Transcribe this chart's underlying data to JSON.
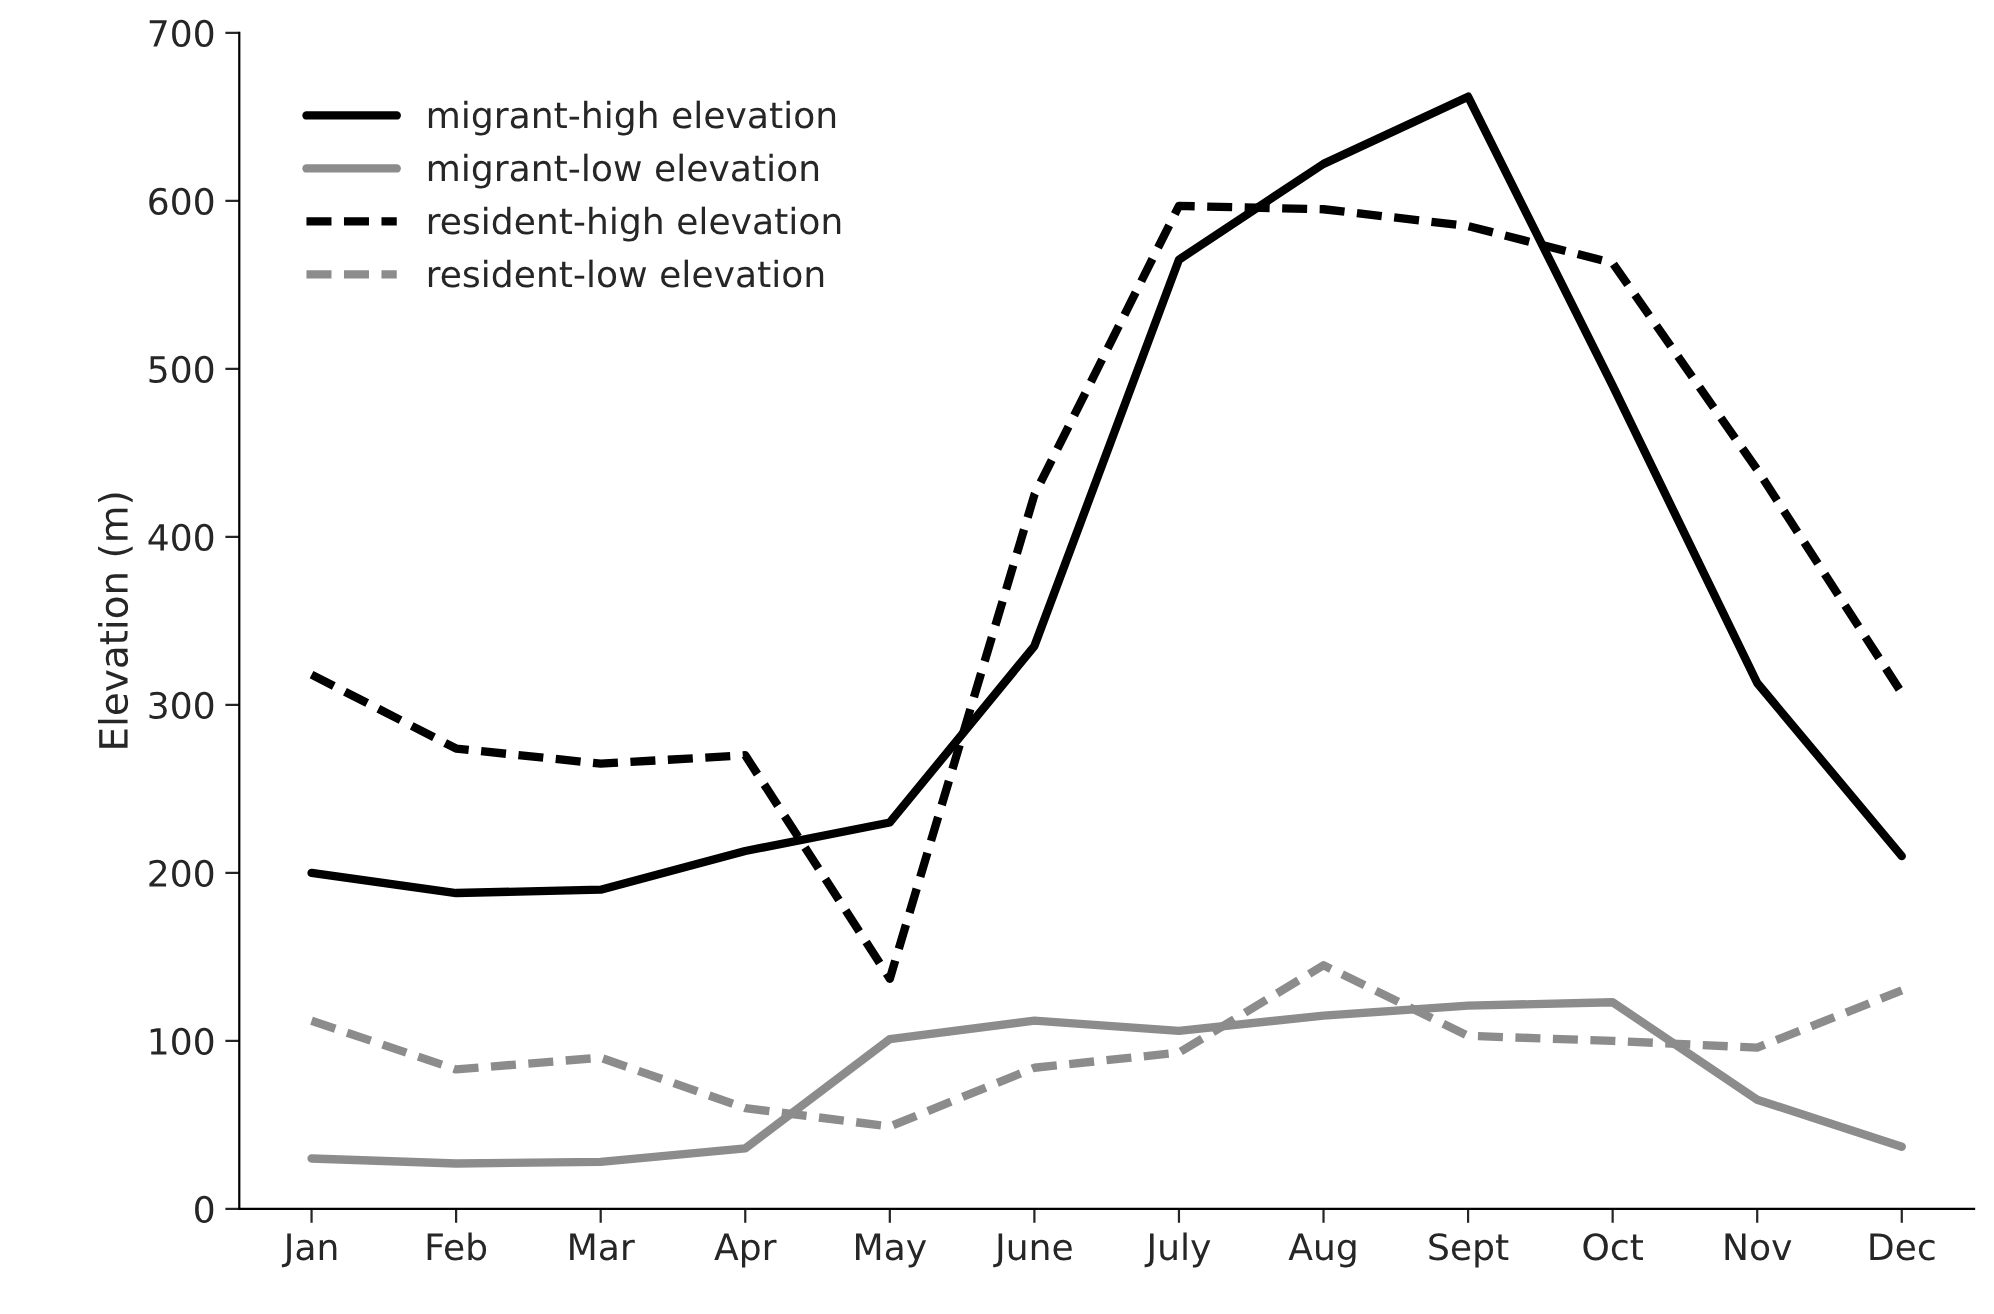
{
  "chart_data": {
    "type": "line",
    "ylabel": "Elevation (m)",
    "categories": [
      "Jan",
      "Feb",
      "Mar",
      "Apr",
      "May",
      "June",
      "July",
      "Aug",
      "Sept",
      "Oct",
      "Nov",
      "Dec"
    ],
    "series": [
      {
        "name": "migrant-high elevation",
        "color": "#000000",
        "line_style": "solid",
        "values": [
          200,
          188,
          190,
          213,
          230,
          335,
          565,
          622,
          662,
          490,
          313,
          210
        ]
      },
      {
        "name": "migrant-low elevation",
        "color": "#8c8c8c",
        "line_style": "solid",
        "values": [
          30,
          27,
          28,
          36,
          101,
          112,
          106,
          115,
          121,
          123,
          65,
          37
        ]
      },
      {
        "name": "resident-high elevation",
        "color": "#000000",
        "line_style": "dashed",
        "values": [
          318,
          274,
          265,
          270,
          137,
          425,
          597,
          595,
          585,
          563,
          440,
          307
        ]
      },
      {
        "name": "resident-low elevation",
        "color": "#8c8c8c",
        "line_style": "dashed",
        "values": [
          112,
          83,
          90,
          60,
          49,
          84,
          93,
          145,
          103,
          100,
          96,
          130
        ]
      }
    ],
    "ylim": [
      0,
      700
    ],
    "yticks": [
      0,
      100,
      200,
      300,
      400,
      500,
      600,
      700
    ],
    "grid": false,
    "legend": "top left",
    "marker": "none"
  }
}
